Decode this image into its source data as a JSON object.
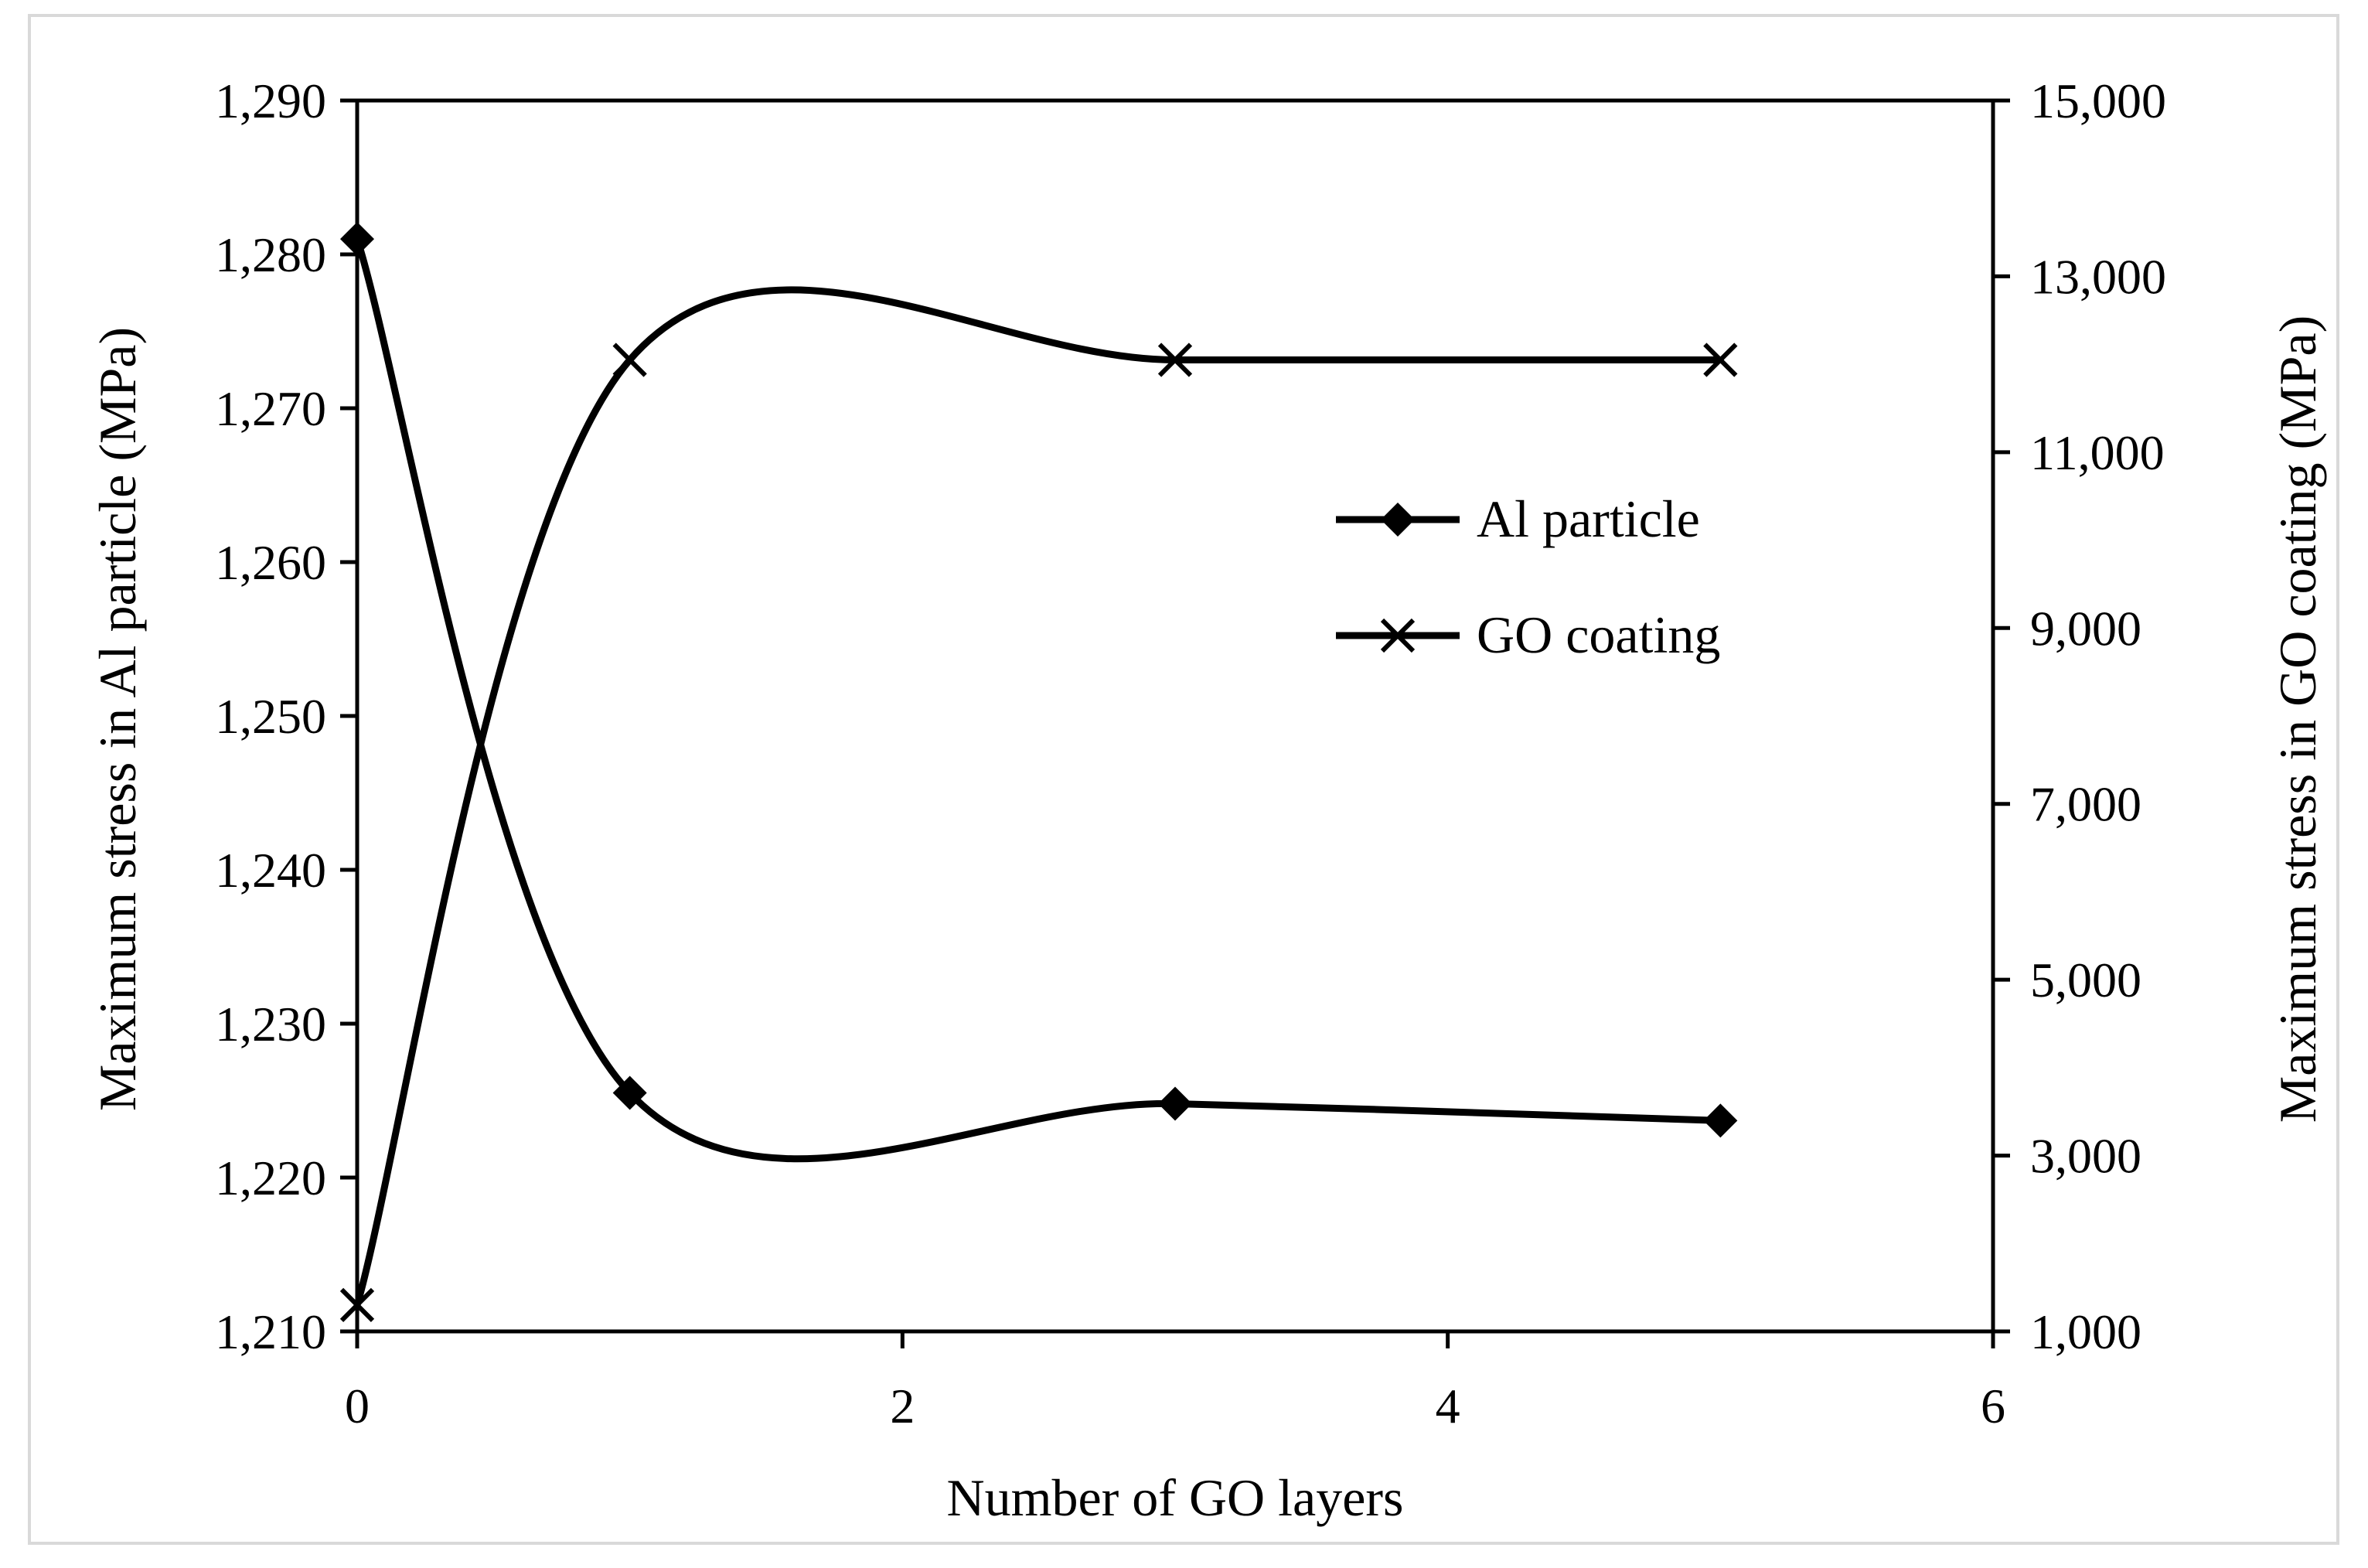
{
  "chart_data": {
    "type": "line",
    "title": "",
    "xlabel": "Number of GO layers",
    "ylabel_left": "Maximum stress in Al particle (MPa)",
    "ylabel_right": "Maximum stress in GO coating (MPa)",
    "xlim": [
      0,
      6
    ],
    "ylim_left": [
      1210,
      1290
    ],
    "ylim_right": [
      1000,
      15000
    ],
    "x_ticks": [
      "0",
      "2",
      "4",
      "6"
    ],
    "y_left_ticks": [
      "1,210",
      "1,220",
      "1,230",
      "1,240",
      "1,250",
      "1,260",
      "1,270",
      "1,280",
      "1,290"
    ],
    "y_right_ticks": [
      "1,000",
      "3,000",
      "5,000",
      "7,000",
      "9,000",
      "11,000",
      "13,000",
      "15,000"
    ],
    "grid": false,
    "smoothed": true,
    "legend_position": "center-right",
    "series": [
      {
        "name": "Al particle",
        "axis": "left",
        "marker": "diamond",
        "color": "#000000",
        "x": [
          0,
          1,
          3,
          5
        ],
        "values": [
          1281.0,
          1225.5,
          1224.8,
          1223.7
        ]
      },
      {
        "name": "GO coating",
        "axis": "right",
        "marker": "x",
        "color": "#000000",
        "x": [
          0,
          1,
          3,
          5
        ],
        "values": [
          1300,
          12050,
          12050,
          12050
        ]
      }
    ]
  }
}
